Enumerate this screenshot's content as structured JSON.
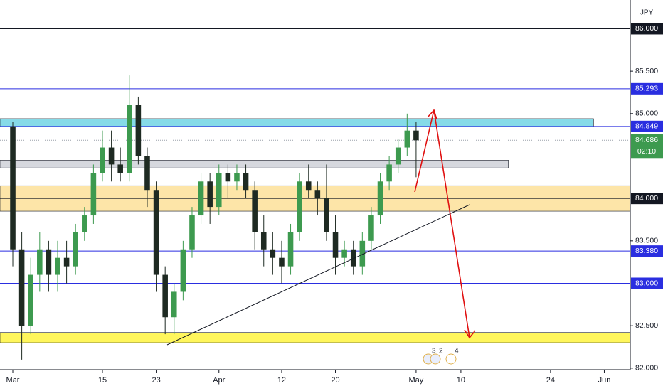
{
  "chart_data": {
    "type": "candlestick",
    "currency": "JPY",
    "xlim": [
      -1.43,
      68.9
    ],
    "ylim": [
      81.982,
      86.339
    ],
    "xticks": [
      {
        "value": 0,
        "label": "Mar"
      },
      {
        "value": 10,
        "label": "15"
      },
      {
        "value": 16,
        "label": "23"
      },
      {
        "value": 23,
        "label": "Apr"
      },
      {
        "value": 30,
        "label": "12"
      },
      {
        "value": 36,
        "label": "20"
      },
      {
        "value": 45,
        "label": "May"
      },
      {
        "value": 50,
        "label": "10"
      },
      {
        "value": 60,
        "label": "24"
      },
      {
        "value": 66,
        "label": "Jun"
      }
    ],
    "yticks": [
      {
        "value": 82,
        "label": "82.000"
      },
      {
        "value": 82.5,
        "label": "82.500"
      },
      {
        "value": 83.5,
        "label": "83.500"
      },
      {
        "value": 85,
        "label": "85.000"
      },
      {
        "value": 85.5,
        "label": "85.500"
      }
    ],
    "up_color": "#3d9a4f",
    "down_color": "#1e2a22",
    "candles": {
      "x": [
        0,
        1,
        2,
        3,
        4,
        5,
        6,
        7,
        8,
        9,
        10,
        11,
        12,
        13,
        14,
        15,
        16,
        17,
        18,
        19,
        20,
        21,
        22,
        23,
        24,
        25,
        26,
        27,
        28,
        29,
        30,
        31,
        32,
        33,
        34,
        35,
        36,
        37,
        38,
        39,
        40,
        41,
        42,
        43,
        44,
        45
      ],
      "open": [
        84.85,
        83.4,
        82.5,
        83.1,
        83.4,
        83.1,
        83.3,
        83.2,
        83.6,
        83.8,
        84.3,
        84.6,
        84.4,
        84.3,
        85.1,
        84.5,
        84.1,
        83.1,
        82.6,
        82.9,
        83.4,
        83.8,
        84.2,
        83.9,
        84.3,
        84.2,
        84.3,
        84.1,
        83.6,
        83.4,
        83.3,
        83.2,
        83.6,
        84.2,
        84.1,
        84.0,
        83.6,
        83.3,
        83.4,
        83.2,
        83.5,
        83.8,
        84.2,
        84.4,
        84.6,
        84.8
      ],
      "high": [
        84.9,
        83.6,
        83.3,
        83.6,
        83.5,
        83.5,
        83.5,
        83.7,
        83.9,
        84.4,
        84.8,
        84.8,
        84.6,
        85.45,
        85.2,
        84.6,
        84.2,
        83.2,
        83.0,
        83.5,
        83.9,
        84.3,
        84.3,
        84.4,
        84.4,
        84.4,
        84.4,
        84.2,
        83.8,
        83.6,
        83.5,
        83.7,
        84.3,
        84.4,
        84.2,
        84.4,
        83.8,
        83.5,
        83.5,
        83.6,
        83.9,
        84.3,
        84.5,
        84.7,
        85.0,
        84.9
      ],
      "low": [
        83.2,
        82.1,
        82.4,
        82.9,
        82.9,
        82.9,
        83.0,
        83.1,
        83.5,
        83.7,
        84.2,
        84.2,
        84.2,
        84.2,
        84.4,
        83.9,
        82.9,
        82.4,
        82.4,
        82.8,
        83.3,
        83.7,
        83.7,
        83.8,
        84.0,
        84.1,
        84.0,
        83.4,
        83.2,
        83.1,
        83.0,
        83.1,
        83.5,
        84.0,
        83.8,
        83.5,
        83.1,
        83.2,
        83.1,
        83.1,
        83.4,
        83.7,
        84.1,
        84.3,
        84.5,
        84.25
      ],
      "close": [
        83.4,
        82.5,
        83.1,
        83.4,
        83.1,
        83.3,
        83.2,
        83.6,
        83.8,
        84.3,
        84.6,
        84.4,
        84.3,
        85.1,
        84.5,
        84.1,
        83.1,
        82.6,
        82.9,
        83.4,
        83.8,
        84.2,
        83.9,
        84.3,
        84.2,
        84.3,
        84.1,
        83.6,
        83.4,
        83.3,
        83.2,
        83.6,
        84.2,
        84.1,
        84.0,
        83.6,
        83.3,
        83.4,
        83.2,
        83.5,
        83.8,
        84.2,
        84.4,
        84.6,
        84.8,
        84.686
      ]
    },
    "zones": [
      {
        "from": 82.3,
        "to": 82.42,
        "color": "#fff65c"
      },
      {
        "from": 83.85,
        "to": 84.15,
        "color": "#fde5a8"
      },
      {
        "from": 84.36,
        "to": 84.45,
        "end": 55.3,
        "color": "#d6d8de"
      },
      {
        "from": 84.849,
        "to": 84.94,
        "end": 64.8,
        "color": "#86dbe8"
      }
    ],
    "levels": [
      {
        "value": 86,
        "label": "86.000",
        "color": "#131722"
      },
      {
        "value": 85.293,
        "label": "85.293",
        "color": "#2a2ee0"
      },
      {
        "value": 84.849,
        "label": "84.849",
        "color": "#2a2ee0"
      },
      {
        "value": 84,
        "label": "84.000",
        "color": "#131722"
      },
      {
        "value": 83.38,
        "label": "83.380",
        "color": "#2a2ee0"
      },
      {
        "value": 83,
        "label": "83.000",
        "color": "#2a2ee0"
      }
    ],
    "last_price": {
      "value": 84.686,
      "label": "84.686",
      "countdown": "02:10",
      "color": "#3d9a4f"
    },
    "events": [
      "3",
      "2",
      "4"
    ]
  }
}
